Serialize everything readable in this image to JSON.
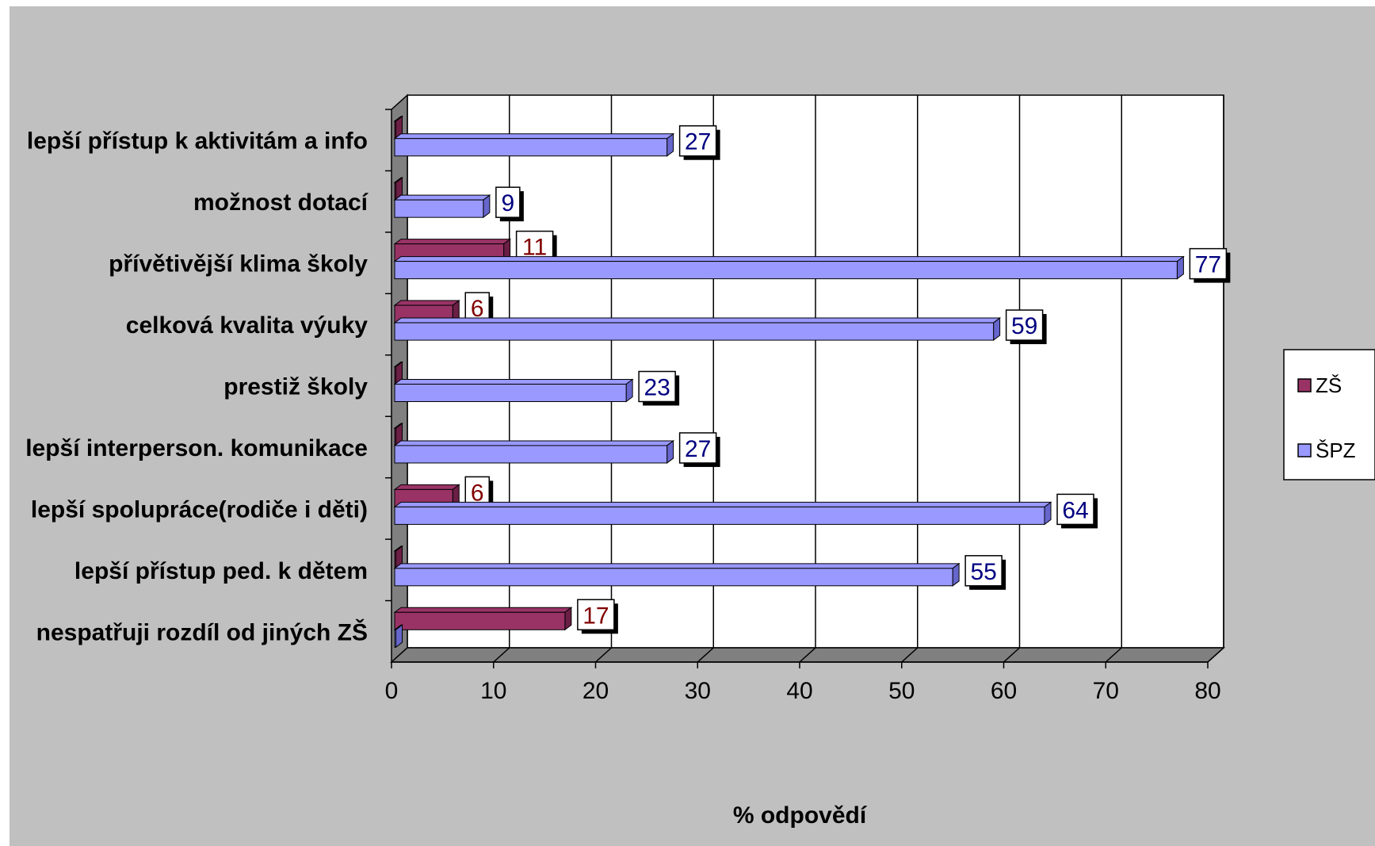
{
  "chart_data": {
    "type": "bar",
    "orientation": "horizontal",
    "three_d": true,
    "categories": [
      "lepší přístup k aktivitám a info",
      "možnost dotací",
      "přívětivější klima školy",
      "celková kvalita výuky",
      "prestiž školy",
      "lepší interperson. komunikace",
      "lepší spolupráce(rodiče i děti)",
      "lepší přístup ped. k dětem",
      "nespatřuji rozdíl od jiných ZŠ"
    ],
    "series": [
      {
        "name": "ZŠ",
        "color": "#993366",
        "label_color": "#800000",
        "values": [
          0,
          0,
          11,
          6,
          0,
          0,
          6,
          0,
          17
        ],
        "labels": [
          "",
          "",
          "11",
          "6",
          "",
          "",
          "6",
          "",
          "17"
        ]
      },
      {
        "name": "ŠPZ",
        "color": "#9999ff",
        "label_color": "#000080",
        "values": [
          27,
          9,
          77,
          59,
          23,
          27,
          64,
          55,
          0
        ],
        "labels": [
          "27",
          "9",
          "77",
          "59",
          "23",
          "27",
          "64",
          "55",
          ""
        ]
      }
    ],
    "xlabel": "% odpovědí",
    "ylabel": "",
    "title": "",
    "xlim": [
      0,
      80
    ],
    "xticks": [
      "0",
      "10",
      "20",
      "30",
      "40",
      "50",
      "60",
      "70",
      "80"
    ],
    "grid": true,
    "legend_position": "right"
  }
}
